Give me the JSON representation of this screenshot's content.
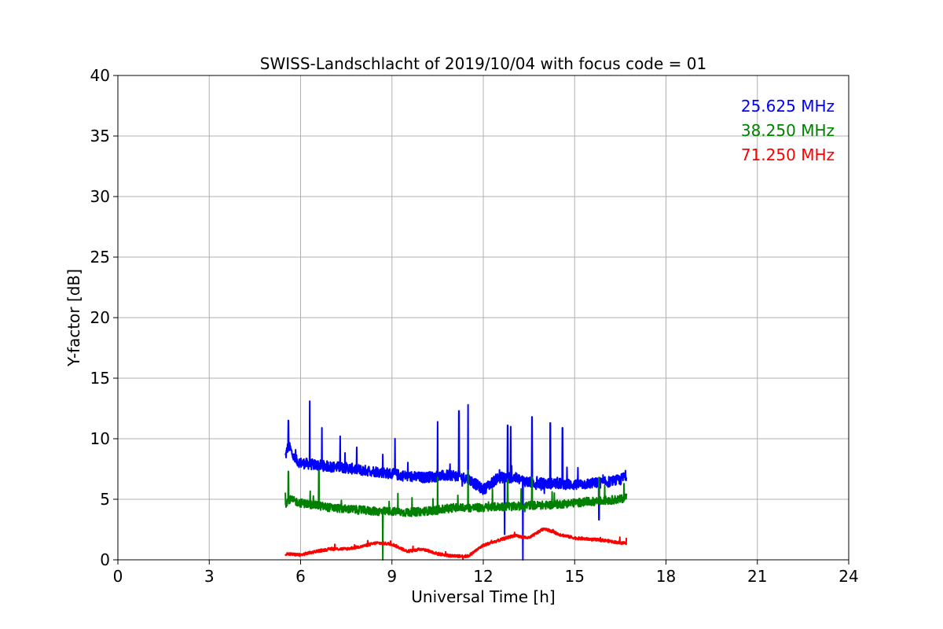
{
  "chart_data": {
    "type": "line",
    "title": "SWISS-Landschlacht of 2019/10/04 with focus code = 01",
    "xlabel": "Universal Time [h]",
    "ylabel": "Y-factor [dB]",
    "xlim": [
      0,
      24
    ],
    "ylim": [
      0,
      40
    ],
    "xticks": [
      0,
      3,
      6,
      9,
      12,
      15,
      18,
      21,
      24
    ],
    "yticks": [
      0,
      5,
      10,
      15,
      20,
      25,
      30,
      35,
      40
    ],
    "xtick_labels": [
      "0",
      "3",
      "6",
      "9",
      "12",
      "15",
      "18",
      "21",
      "24"
    ],
    "ytick_labels": [
      "0",
      "5",
      "10",
      "15",
      "20",
      "25",
      "30",
      "35",
      "40"
    ],
    "grid": true,
    "legend_position": "top-right",
    "series": [
      {
        "name": "25.625 MHz",
        "color": "#0000ff",
        "x": [
          5.5,
          5.6,
          5.8,
          6.0,
          6.3,
          6.6,
          7.0,
          7.5,
          8.0,
          8.5,
          9.0,
          9.5,
          10.0,
          10.5,
          11.0,
          11.5,
          12.0,
          12.5,
          13.0,
          13.5,
          14.0,
          14.5,
          15.0,
          15.5,
          16.0,
          16.5,
          16.7
        ],
        "y": [
          8.5,
          9.5,
          8.3,
          8.0,
          7.9,
          7.8,
          7.7,
          7.6,
          7.4,
          7.3,
          7.1,
          6.9,
          6.8,
          6.9,
          7.0,
          6.7,
          5.8,
          6.8,
          6.8,
          6.4,
          6.3,
          6.3,
          6.2,
          6.3,
          6.4,
          6.6,
          7.0
        ],
        "spikes": [
          [
            5.6,
            11.5
          ],
          [
            6.3,
            13.1
          ],
          [
            6.7,
            10.9
          ],
          [
            7.3,
            10.2
          ],
          [
            8.7,
            8.7
          ],
          [
            9.1,
            10.0
          ],
          [
            10.5,
            11.4
          ],
          [
            11.2,
            12.3
          ],
          [
            11.5,
            12.8
          ],
          [
            12.8,
            11.1
          ],
          [
            12.9,
            11.0
          ],
          [
            13.6,
            11.8
          ],
          [
            14.2,
            11.3
          ],
          [
            14.6,
            10.9
          ],
          [
            13.3,
            0.0
          ],
          [
            12.7,
            2.1
          ],
          [
            15.8,
            3.3
          ]
        ]
      },
      {
        "name": "38.250 MHz",
        "color": "#008000",
        "x": [
          5.5,
          5.6,
          6.0,
          6.5,
          7.0,
          7.5,
          8.0,
          8.5,
          9.0,
          9.5,
          10.0,
          10.5,
          11.0,
          11.5,
          12.0,
          12.5,
          13.0,
          13.5,
          14.0,
          14.5,
          15.0,
          15.5,
          16.0,
          16.5,
          16.7
        ],
        "y": [
          4.6,
          5.0,
          4.7,
          4.5,
          4.3,
          4.2,
          4.1,
          4.0,
          4.0,
          3.9,
          4.0,
          4.1,
          4.3,
          4.3,
          4.3,
          4.4,
          4.4,
          4.5,
          4.5,
          4.6,
          4.7,
          4.8,
          4.9,
          5.0,
          5.2
        ],
        "spikes": [
          [
            5.6,
            7.3
          ],
          [
            6.6,
            7.4
          ],
          [
            8.7,
            0.0
          ],
          [
            10.5,
            6.8
          ],
          [
            11.5,
            7.4
          ],
          [
            12.8,
            6.6
          ],
          [
            13.6,
            6.8
          ],
          [
            15.8,
            6.8
          ]
        ]
      },
      {
        "name": "71.250 MHz",
        "color": "#ff0000",
        "x": [
          5.5,
          6.0,
          6.5,
          7.0,
          7.5,
          8.0,
          8.5,
          9.0,
          9.5,
          10.0,
          10.5,
          11.0,
          11.5,
          12.0,
          12.5,
          13.0,
          13.5,
          14.0,
          14.5,
          15.0,
          15.5,
          16.0,
          16.5,
          16.7
        ],
        "y": [
          0.5,
          0.4,
          0.7,
          0.9,
          0.9,
          1.1,
          1.4,
          1.3,
          0.7,
          0.9,
          0.5,
          0.3,
          0.3,
          1.2,
          1.6,
          2.0,
          1.8,
          2.6,
          2.1,
          1.8,
          1.7,
          1.6,
          1.4,
          1.4
        ]
      }
    ]
  }
}
